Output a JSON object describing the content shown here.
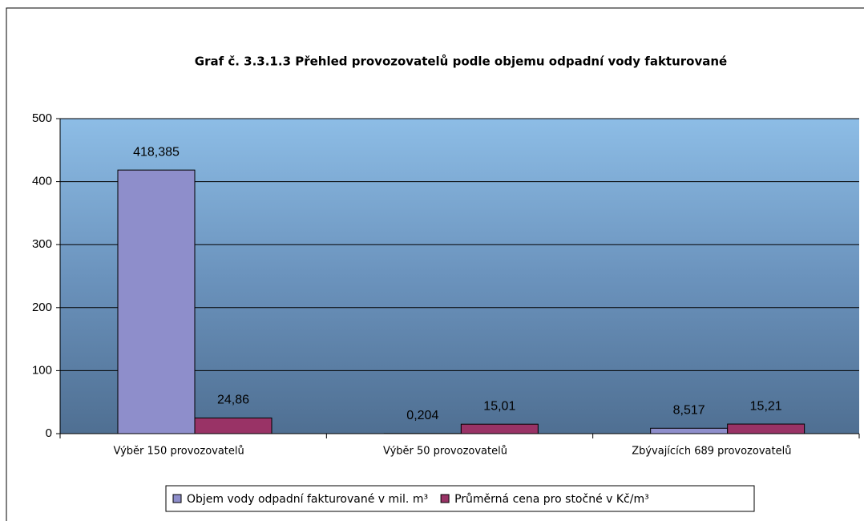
{
  "chart_data": {
    "type": "bar",
    "title": "Graf č. 3.3.1.3 Přehled provozovatelů podle objemu odpadní vody fakturované",
    "categories": [
      "Výběr 150 provozovatelů",
      "Výběr 50 provozovatelů",
      "Zbývajících 689 provozovatelů"
    ],
    "series": [
      {
        "name": "Objem vody odpadní fakturované v mil. m³",
        "color": "#8e8ecb",
        "values": [
          418.385,
          0.204,
          8.517
        ],
        "value_labels": [
          "418,385",
          "0,204",
          "8,517"
        ]
      },
      {
        "name": "Průměrná cena pro stočné v Kč/m³",
        "color": "#993366",
        "values": [
          24.86,
          15.01,
          15.21
        ],
        "value_labels": [
          "24,86",
          "15,01",
          "15,21"
        ]
      }
    ],
    "ylim": [
      0,
      500
    ],
    "yticks": [
      0,
      100,
      200,
      300,
      400,
      500
    ],
    "grid": true,
    "legend": "bottom"
  }
}
